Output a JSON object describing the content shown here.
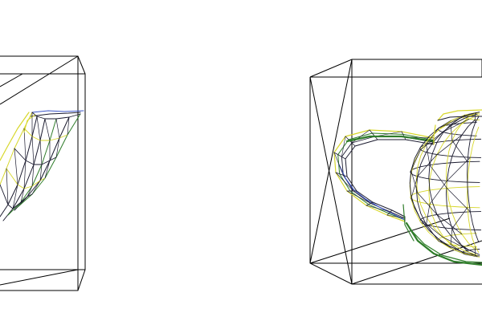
{
  "scene": {
    "background": "#ffffff",
    "colors": {
      "box_edge": "#000000",
      "mesh_dark": "#1a1a2e",
      "mesh_yellow": "#d7d72a",
      "mesh_green": "#2f7d2a",
      "mesh_blue": "#3b56c9"
    },
    "viewports": [
      {
        "object": "teapot-wireframe",
        "view": "side-clipped"
      },
      {
        "object": "teapot-wireframe",
        "view": "perspective"
      }
    ]
  }
}
